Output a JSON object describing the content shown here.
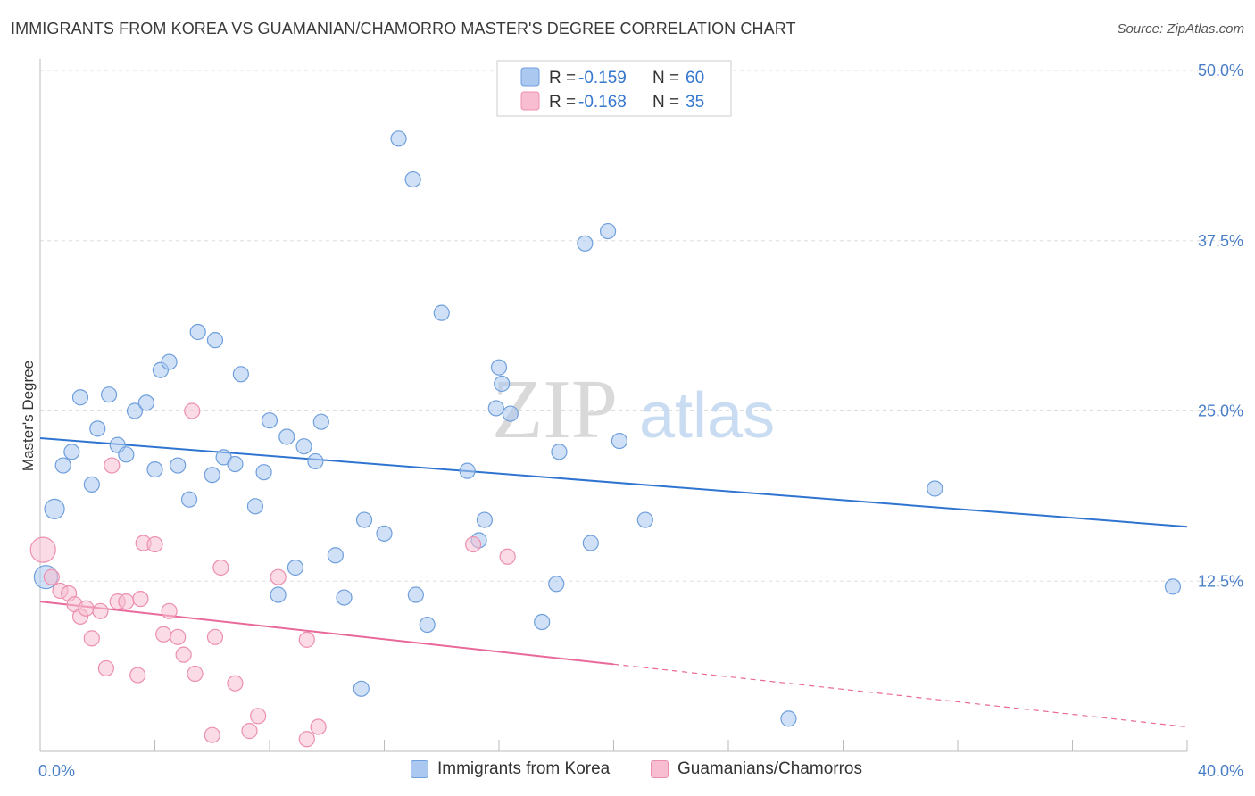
{
  "title": "IMMIGRANTS FROM KOREA VS GUAMANIAN/CHAMORRO MASTER'S DEGREE CORRELATION CHART",
  "source": "Source: ZipAtlas.com",
  "watermark": {
    "zip": "ZIP",
    "atlas": "atlas"
  },
  "colors": {
    "korea_fill": "#aac8f0",
    "korea_stroke": "#6f9fdc",
    "korea_line": "#2f74d0",
    "guam_fill": "#f8bdd0",
    "guam_stroke": "#ec8fae",
    "guam_line": "#e8699a",
    "axis_text": "#4a7fc8",
    "grid": "#dddddd"
  },
  "chart_data": {
    "type": "scatter",
    "title": "IMMIGRANTS FROM KOREA VS GUAMANIAN/CHAMORRO MASTER'S DEGREE CORRELATION CHART",
    "xlabel": "",
    "ylabel": "Master's Degree",
    "xlim": [
      0,
      40
    ],
    "ylim": [
      0,
      50
    ],
    "x_tick_labels": [
      "0.0%",
      "40.0%"
    ],
    "y_ticks": [
      12.5,
      25.0,
      37.5,
      50.0
    ],
    "y_tick_labels": [
      "12.5%",
      "25.0%",
      "37.5%",
      "50.0%"
    ],
    "grid": "horizontal dashed",
    "legend_top": [
      {
        "r_label": "R =",
        "r_value": "-0.159",
        "n_label": "N =",
        "n_value": "60"
      },
      {
        "r_label": "R =",
        "r_value": "-0.168",
        "n_label": "N =",
        "n_value": "35"
      }
    ],
    "series": [
      {
        "name": "Immigrants from Korea",
        "trend": {
          "x": [
            0,
            40
          ],
          "y": [
            23.0,
            16.5
          ],
          "dashed_from": null
        },
        "points": [
          [
            0.2,
            12.8
          ],
          [
            0.5,
            17.8
          ],
          [
            0.8,
            21.0
          ],
          [
            1.1,
            22.0
          ],
          [
            1.4,
            26.0
          ],
          [
            1.8,
            19.6
          ],
          [
            2.0,
            23.7
          ],
          [
            2.4,
            26.2
          ],
          [
            2.7,
            22.5
          ],
          [
            3.0,
            21.8
          ],
          [
            3.3,
            25.0
          ],
          [
            3.7,
            25.6
          ],
          [
            4.0,
            20.7
          ],
          [
            4.2,
            28.0
          ],
          [
            4.5,
            28.6
          ],
          [
            4.8,
            21.0
          ],
          [
            5.2,
            18.5
          ],
          [
            5.5,
            30.8
          ],
          [
            6.0,
            20.3
          ],
          [
            6.1,
            30.2
          ],
          [
            6.4,
            21.6
          ],
          [
            6.8,
            21.1
          ],
          [
            7.0,
            27.7
          ],
          [
            7.5,
            18.0
          ],
          [
            7.8,
            20.5
          ],
          [
            8.0,
            24.3
          ],
          [
            8.3,
            11.5
          ],
          [
            8.6,
            23.1
          ],
          [
            8.9,
            13.5
          ],
          [
            9.2,
            22.4
          ],
          [
            9.6,
            21.3
          ],
          [
            9.8,
            24.2
          ],
          [
            10.3,
            14.4
          ],
          [
            10.6,
            11.3
          ],
          [
            11.2,
            4.6
          ],
          [
            11.3,
            17.0
          ],
          [
            12.0,
            16.0
          ],
          [
            12.5,
            45.0
          ],
          [
            13.0,
            42.0
          ],
          [
            13.1,
            11.5
          ],
          [
            13.5,
            9.3
          ],
          [
            14.0,
            32.2
          ],
          [
            14.9,
            20.6
          ],
          [
            15.3,
            15.5
          ],
          [
            15.5,
            17.0
          ],
          [
            15.9,
            25.2
          ],
          [
            16.0,
            28.2
          ],
          [
            16.1,
            27.0
          ],
          [
            16.4,
            24.8
          ],
          [
            17.5,
            9.5
          ],
          [
            18.0,
            12.3
          ],
          [
            18.1,
            22.0
          ],
          [
            19.0,
            37.3
          ],
          [
            19.2,
            15.3
          ],
          [
            19.8,
            38.2
          ],
          [
            20.2,
            22.8
          ],
          [
            21.1,
            17.0
          ],
          [
            31.2,
            19.3
          ],
          [
            26.1,
            2.4
          ],
          [
            39.5,
            12.1
          ]
        ]
      },
      {
        "name": "Guamanians/Chamorros",
        "trend": {
          "x": [
            0,
            40
          ],
          "y": [
            11.0,
            1.8
          ],
          "dashed_from": 20.0
        },
        "points": [
          [
            0.1,
            14.8
          ],
          [
            0.4,
            12.8
          ],
          [
            0.7,
            11.8
          ],
          [
            1.0,
            11.6
          ],
          [
            1.2,
            10.8
          ],
          [
            1.4,
            9.9
          ],
          [
            1.6,
            10.5
          ],
          [
            1.8,
            8.3
          ],
          [
            2.1,
            10.3
          ],
          [
            2.3,
            6.1
          ],
          [
            2.5,
            21.0
          ],
          [
            2.7,
            11.0
          ],
          [
            3.0,
            11.0
          ],
          [
            3.4,
            5.6
          ],
          [
            3.5,
            11.2
          ],
          [
            3.6,
            15.3
          ],
          [
            4.0,
            15.2
          ],
          [
            4.3,
            8.6
          ],
          [
            4.5,
            10.3
          ],
          [
            4.8,
            8.4
          ],
          [
            5.0,
            7.1
          ],
          [
            5.3,
            25.0
          ],
          [
            5.4,
            5.7
          ],
          [
            6.0,
            1.2
          ],
          [
            6.1,
            8.4
          ],
          [
            6.3,
            13.5
          ],
          [
            6.8,
            5.0
          ],
          [
            7.3,
            1.5
          ],
          [
            7.6,
            2.6
          ],
          [
            8.3,
            12.8
          ],
          [
            9.3,
            8.2
          ],
          [
            9.3,
            0.9
          ],
          [
            9.7,
            1.8
          ],
          [
            15.1,
            15.2
          ],
          [
            16.3,
            14.3
          ]
        ]
      }
    ]
  }
}
